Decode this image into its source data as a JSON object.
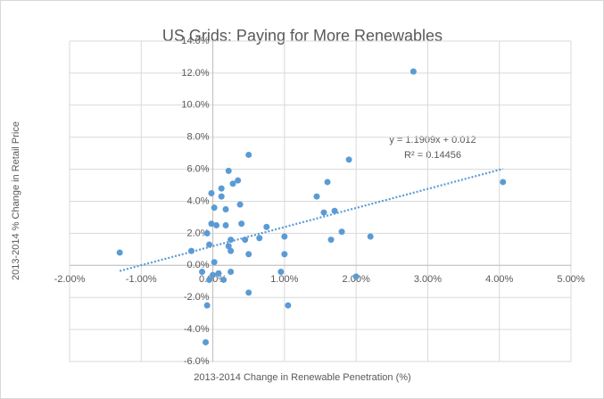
{
  "chart_data": {
    "type": "scatter",
    "title": "US Grids: Paying for More Renewables",
    "x_label": "2013-2014 Change in Renewable Penetration (%)",
    "y_label": "2013-2014 % Change in Retail Price",
    "color": "#5b9bd5",
    "grid": true,
    "x": [
      -1.3,
      2.8,
      4.05,
      2.2,
      2.0,
      1.9,
      1.8,
      1.7,
      1.65,
      1.6,
      1.55,
      1.45,
      1.05,
      1.0,
      1.0,
      0.95,
      0.75,
      0.65,
      0.5,
      0.5,
      0.5,
      0.45,
      0.4,
      0.38,
      0.35,
      0.28,
      0.25,
      0.22,
      0.25,
      0.22,
      0.25,
      0.18,
      0.18,
      0.12,
      0.12,
      0.15,
      0.08,
      0.05,
      0.02,
      0.02,
      -0.02,
      -0.02,
      -0.05,
      -0.08,
      -0.08,
      -0.1,
      -0.15,
      -0.05,
      -0.3,
      0.0
    ],
    "values": [
      0.8,
      12.1,
      5.2,
      1.8,
      -0.7,
      6.6,
      2.1,
      3.4,
      1.6,
      5.2,
      3.3,
      4.3,
      -2.5,
      0.7,
      1.8,
      -0.4,
      2.4,
      1.7,
      6.9,
      -1.7,
      0.7,
      1.6,
      2.6,
      3.8,
      5.3,
      5.1,
      0.9,
      5.9,
      1.6,
      1.2,
      -0.4,
      3.5,
      2.5,
      4.8,
      4.3,
      -0.9,
      -0.5,
      2.5,
      3.6,
      0.2,
      4.5,
      2.6,
      1.3,
      2.0,
      -2.5,
      -4.8,
      -0.4,
      -0.9,
      0.9,
      -0.6
    ],
    "xlim": [
      -2,
      5
    ],
    "ylim": [
      -6,
      14
    ],
    "xticks": [
      {
        "value": -2,
        "label": "-2.00%"
      },
      {
        "value": -1,
        "label": "-1.00%"
      },
      {
        "value": 0,
        "label": "0.00%"
      },
      {
        "value": 1,
        "label": "1.00%"
      },
      {
        "value": 2,
        "label": "2.00%"
      },
      {
        "value": 3,
        "label": "3.00%"
      },
      {
        "value": 4,
        "label": "4.00%"
      },
      {
        "value": 5,
        "label": "5.00%"
      }
    ],
    "yticks": [
      {
        "value": -6,
        "label": "-6.0%"
      },
      {
        "value": -4,
        "label": "-4.0%"
      },
      {
        "value": -2,
        "label": "-2.0%"
      },
      {
        "value": 0,
        "label": "0.0%"
      },
      {
        "value": 2,
        "label": "2.0%"
      },
      {
        "value": 4,
        "label": "4.0%"
      },
      {
        "value": 6,
        "label": "6.0%"
      },
      {
        "value": 8,
        "label": "8.0%"
      },
      {
        "value": 10,
        "label": "10.0%"
      },
      {
        "value": 12,
        "label": "12.0%"
      },
      {
        "value": 14,
        "label": "14.0%"
      }
    ],
    "trendline": {
      "slope": 1.1909,
      "intercept": 1.2,
      "equation": "y = 1.1909x + 0.012",
      "r2": "R² = 0.14456"
    }
  }
}
